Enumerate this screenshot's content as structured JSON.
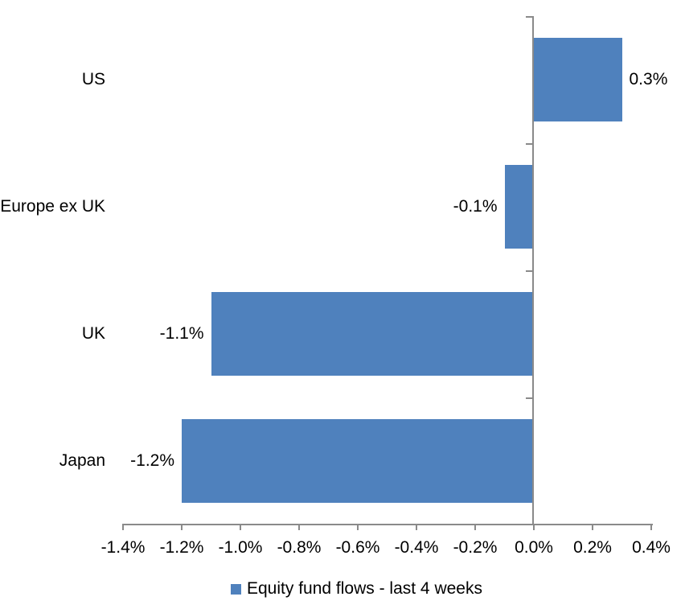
{
  "chart_data": {
    "type": "bar",
    "orientation": "horizontal",
    "title": "",
    "categories": [
      "US",
      "Europe ex UK",
      "UK",
      "Japan"
    ],
    "series": [
      {
        "name": "Equity fund flows - last 4 weeks",
        "values": [
          0.3,
          -0.1,
          -1.1,
          -1.2
        ],
        "data_labels": [
          "0.3%",
          "-0.1%",
          "-1.1%",
          "-1.2%"
        ]
      }
    ],
    "value_unit": "percent",
    "xlim": [
      -1.4,
      0.4
    ],
    "x_tick_step": 0.2,
    "x_tick_labels": [
      "-1.4%",
      "-1.2%",
      "-1.0%",
      "-0.8%",
      "-0.6%",
      "-0.4%",
      "-0.2%",
      "0.0%",
      "0.2%",
      "0.4%"
    ],
    "grid": false,
    "legend": {
      "position": "bottom-center",
      "entries": [
        {
          "label": "Equity fund flows - last 4 weeks",
          "color": "#4F81BD"
        }
      ]
    },
    "colors": {
      "bar": "#4F81BD",
      "axis": "#8A8A8A",
      "text": "#000000",
      "background": "#FFFFFF"
    }
  }
}
